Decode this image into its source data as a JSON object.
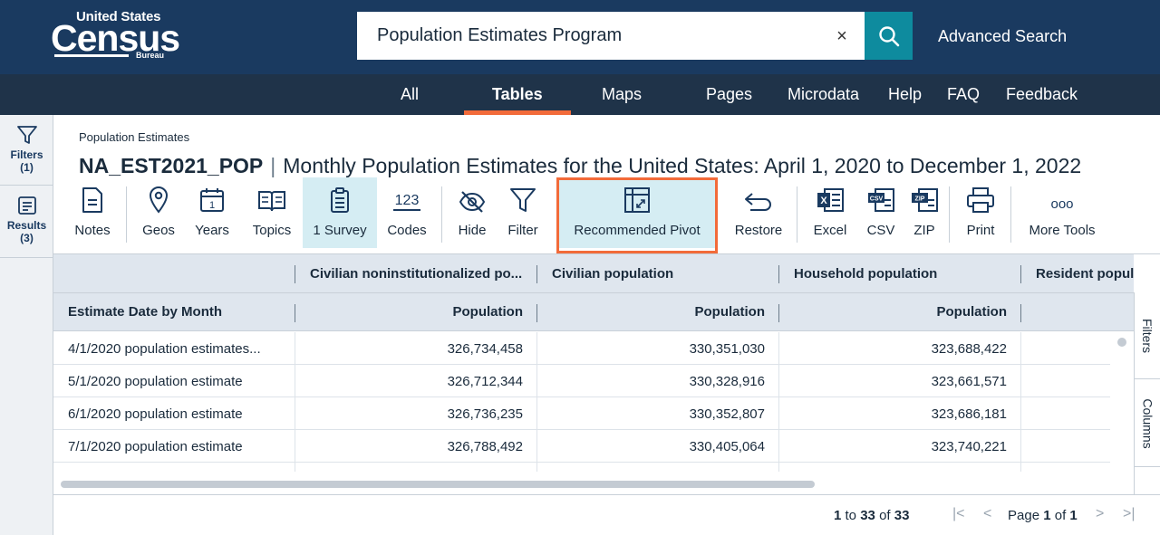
{
  "header": {
    "logo_top": "United States",
    "logo_main": "Census",
    "logo_bottom": "Bureau",
    "search_value": "Population Estimates Program",
    "clear_label": "×",
    "advanced_search": "Advanced Search"
  },
  "nav": {
    "items": [
      "All",
      "Tables",
      "Maps",
      "Pages",
      "Microdata",
      "Help",
      "FAQ",
      "Feedback"
    ],
    "active": "Tables"
  },
  "leftbar": {
    "filters_label": "Filters",
    "filters_count": "(1)",
    "results_label": "Results",
    "results_count": "(3)"
  },
  "page": {
    "breadcrumb": "Population Estimates",
    "table_id": "NA_EST2021_POP",
    "title_sep": "|",
    "table_title": "Monthly Population Estimates for the United States: April 1, 2020 to December 1, 2022"
  },
  "toolbar": {
    "notes": "Notes",
    "geos": "Geos",
    "years": "Years",
    "years_icon_text": "1",
    "topics": "Topics",
    "survey": "1 Survey",
    "codes": "Codes",
    "codes_icon_text": "123",
    "hide": "Hide",
    "filter": "Filter",
    "recommended_pivot": "Recommended Pivot",
    "restore": "Restore",
    "excel": "Excel",
    "excel_icon_text": "X",
    "csv": "CSV",
    "csv_icon_text": "CSV",
    "zip": "ZIP",
    "zip_icon_text": "ZIP",
    "print": "Print",
    "more_tools": "More Tools",
    "more_icon_text": "ooo"
  },
  "grid": {
    "group_headers": [
      "Civilian noninstitutionalized po...",
      "Civilian population",
      "Household population",
      "Resident popul"
    ],
    "row_header": "Estimate Date by Month",
    "col_headers": [
      "Population",
      "Population",
      "Population"
    ],
    "rows": [
      {
        "label": "4/1/2020 population estimates...",
        "values": [
          "326,734,458",
          "330,351,030",
          "323,688,422"
        ]
      },
      {
        "label": "5/1/2020 population estimate",
        "values": [
          "326,712,344",
          "330,328,916",
          "323,661,571"
        ]
      },
      {
        "label": "6/1/2020 population estimate",
        "values": [
          "326,736,235",
          "330,352,807",
          "323,686,181"
        ]
      },
      {
        "label": "7/1/2020 population estimate",
        "values": [
          "326,788,492",
          "330,405,064",
          "323,740,221"
        ]
      }
    ]
  },
  "sidepanel": {
    "filters_tab": "Filters",
    "columns_tab": "Columns"
  },
  "pager": {
    "start": "1",
    "to": "to",
    "end": "33",
    "of": "of",
    "total": "33",
    "page_word": "Page",
    "page_num": "1",
    "page_of": "of",
    "page_total": "1",
    "first_glyph": "|<",
    "prev_glyph": "<",
    "next_glyph": ">",
    "last_glyph": ">|"
  },
  "colors": {
    "header_bg": "#1a3a60",
    "nav_bg": "#1f3349",
    "accent_orange": "#f26b3a",
    "search_teal": "#0e8b9e",
    "selected_tool_bg": "#d5edf3",
    "grid_header_bg": "#dfe6ee"
  }
}
